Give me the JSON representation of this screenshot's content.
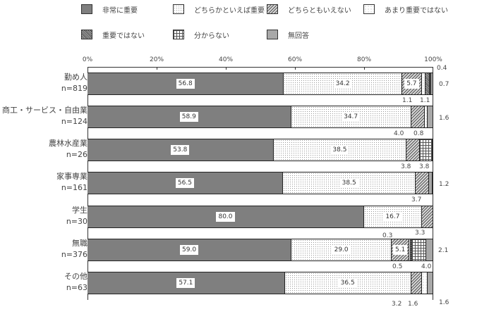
{
  "legend": [
    {
      "label": "非常に重要",
      "pattern": "p0"
    },
    {
      "label": "どちらかといえば重要",
      "pattern": "p1"
    },
    {
      "label": "どちらともいえない",
      "pattern": "p2"
    },
    {
      "label": "あまり重要ではない",
      "pattern": "p3"
    },
    {
      "label": "重要ではない",
      "pattern": "p4"
    },
    {
      "label": "分からない",
      "pattern": "p5"
    },
    {
      "label": "無回答",
      "pattern": "p6"
    }
  ],
  "axis": {
    "ticks": [
      "0%",
      "20%",
      "40%",
      "60%",
      "80%",
      "100%"
    ]
  },
  "rows": [
    {
      "name": "勤め人",
      "n": "n=819"
    },
    {
      "name": "商工・サービス・自由業",
      "n": "n=124"
    },
    {
      "name": "農林水産業",
      "n": "n=26"
    },
    {
      "name": "家事専業",
      "n": "n=161"
    },
    {
      "name": "学生",
      "n": "n=30"
    },
    {
      "name": "無職",
      "n": "n=376"
    },
    {
      "name": "その他",
      "n": "n=63"
    }
  ],
  "chart_data": {
    "type": "bar",
    "orientation": "horizontal",
    "stacked": true,
    "percent": true,
    "title": "",
    "xlabel": "",
    "ylabel": "",
    "xlim": [
      0,
      100
    ],
    "x_ticks": [
      "0%",
      "20%",
      "40%",
      "60%",
      "80%",
      "100%"
    ],
    "legend_position": "top",
    "categories": [
      "勤め人 n=819",
      "商工・サービス・自由業 n=124",
      "農林水産業 n=26",
      "家事専業 n=161",
      "学生 n=30",
      "無職 n=376",
      "その他 n=63"
    ],
    "series": [
      {
        "name": "非常に重要",
        "values": [
          56.8,
          58.9,
          53.8,
          56.5,
          80.0,
          59.0,
          57.1
        ]
      },
      {
        "name": "どちらかといえば重要",
        "values": [
          34.2,
          34.7,
          38.5,
          38.5,
          16.7,
          29.0,
          36.5
        ]
      },
      {
        "name": "どちらともいえない",
        "values": [
          5.7,
          4.0,
          3.8,
          3.7,
          3.3,
          5.1,
          3.2
        ]
      },
      {
        "name": "あまり重要ではない",
        "values": [
          1.1,
          0.8,
          0,
          0,
          0,
          0.3,
          1.6
        ]
      },
      {
        "name": "重要ではない",
        "values": [
          1.1,
          0,
          0,
          0,
          0,
          0.5,
          0
        ]
      },
      {
        "name": "分からない",
        "values": [
          0.4,
          0,
          3.8,
          0,
          0,
          4.0,
          0
        ]
      },
      {
        "name": "無回答",
        "values": [
          0.7,
          1.6,
          0,
          1.2,
          0,
          2.1,
          1.6
        ]
      }
    ]
  }
}
